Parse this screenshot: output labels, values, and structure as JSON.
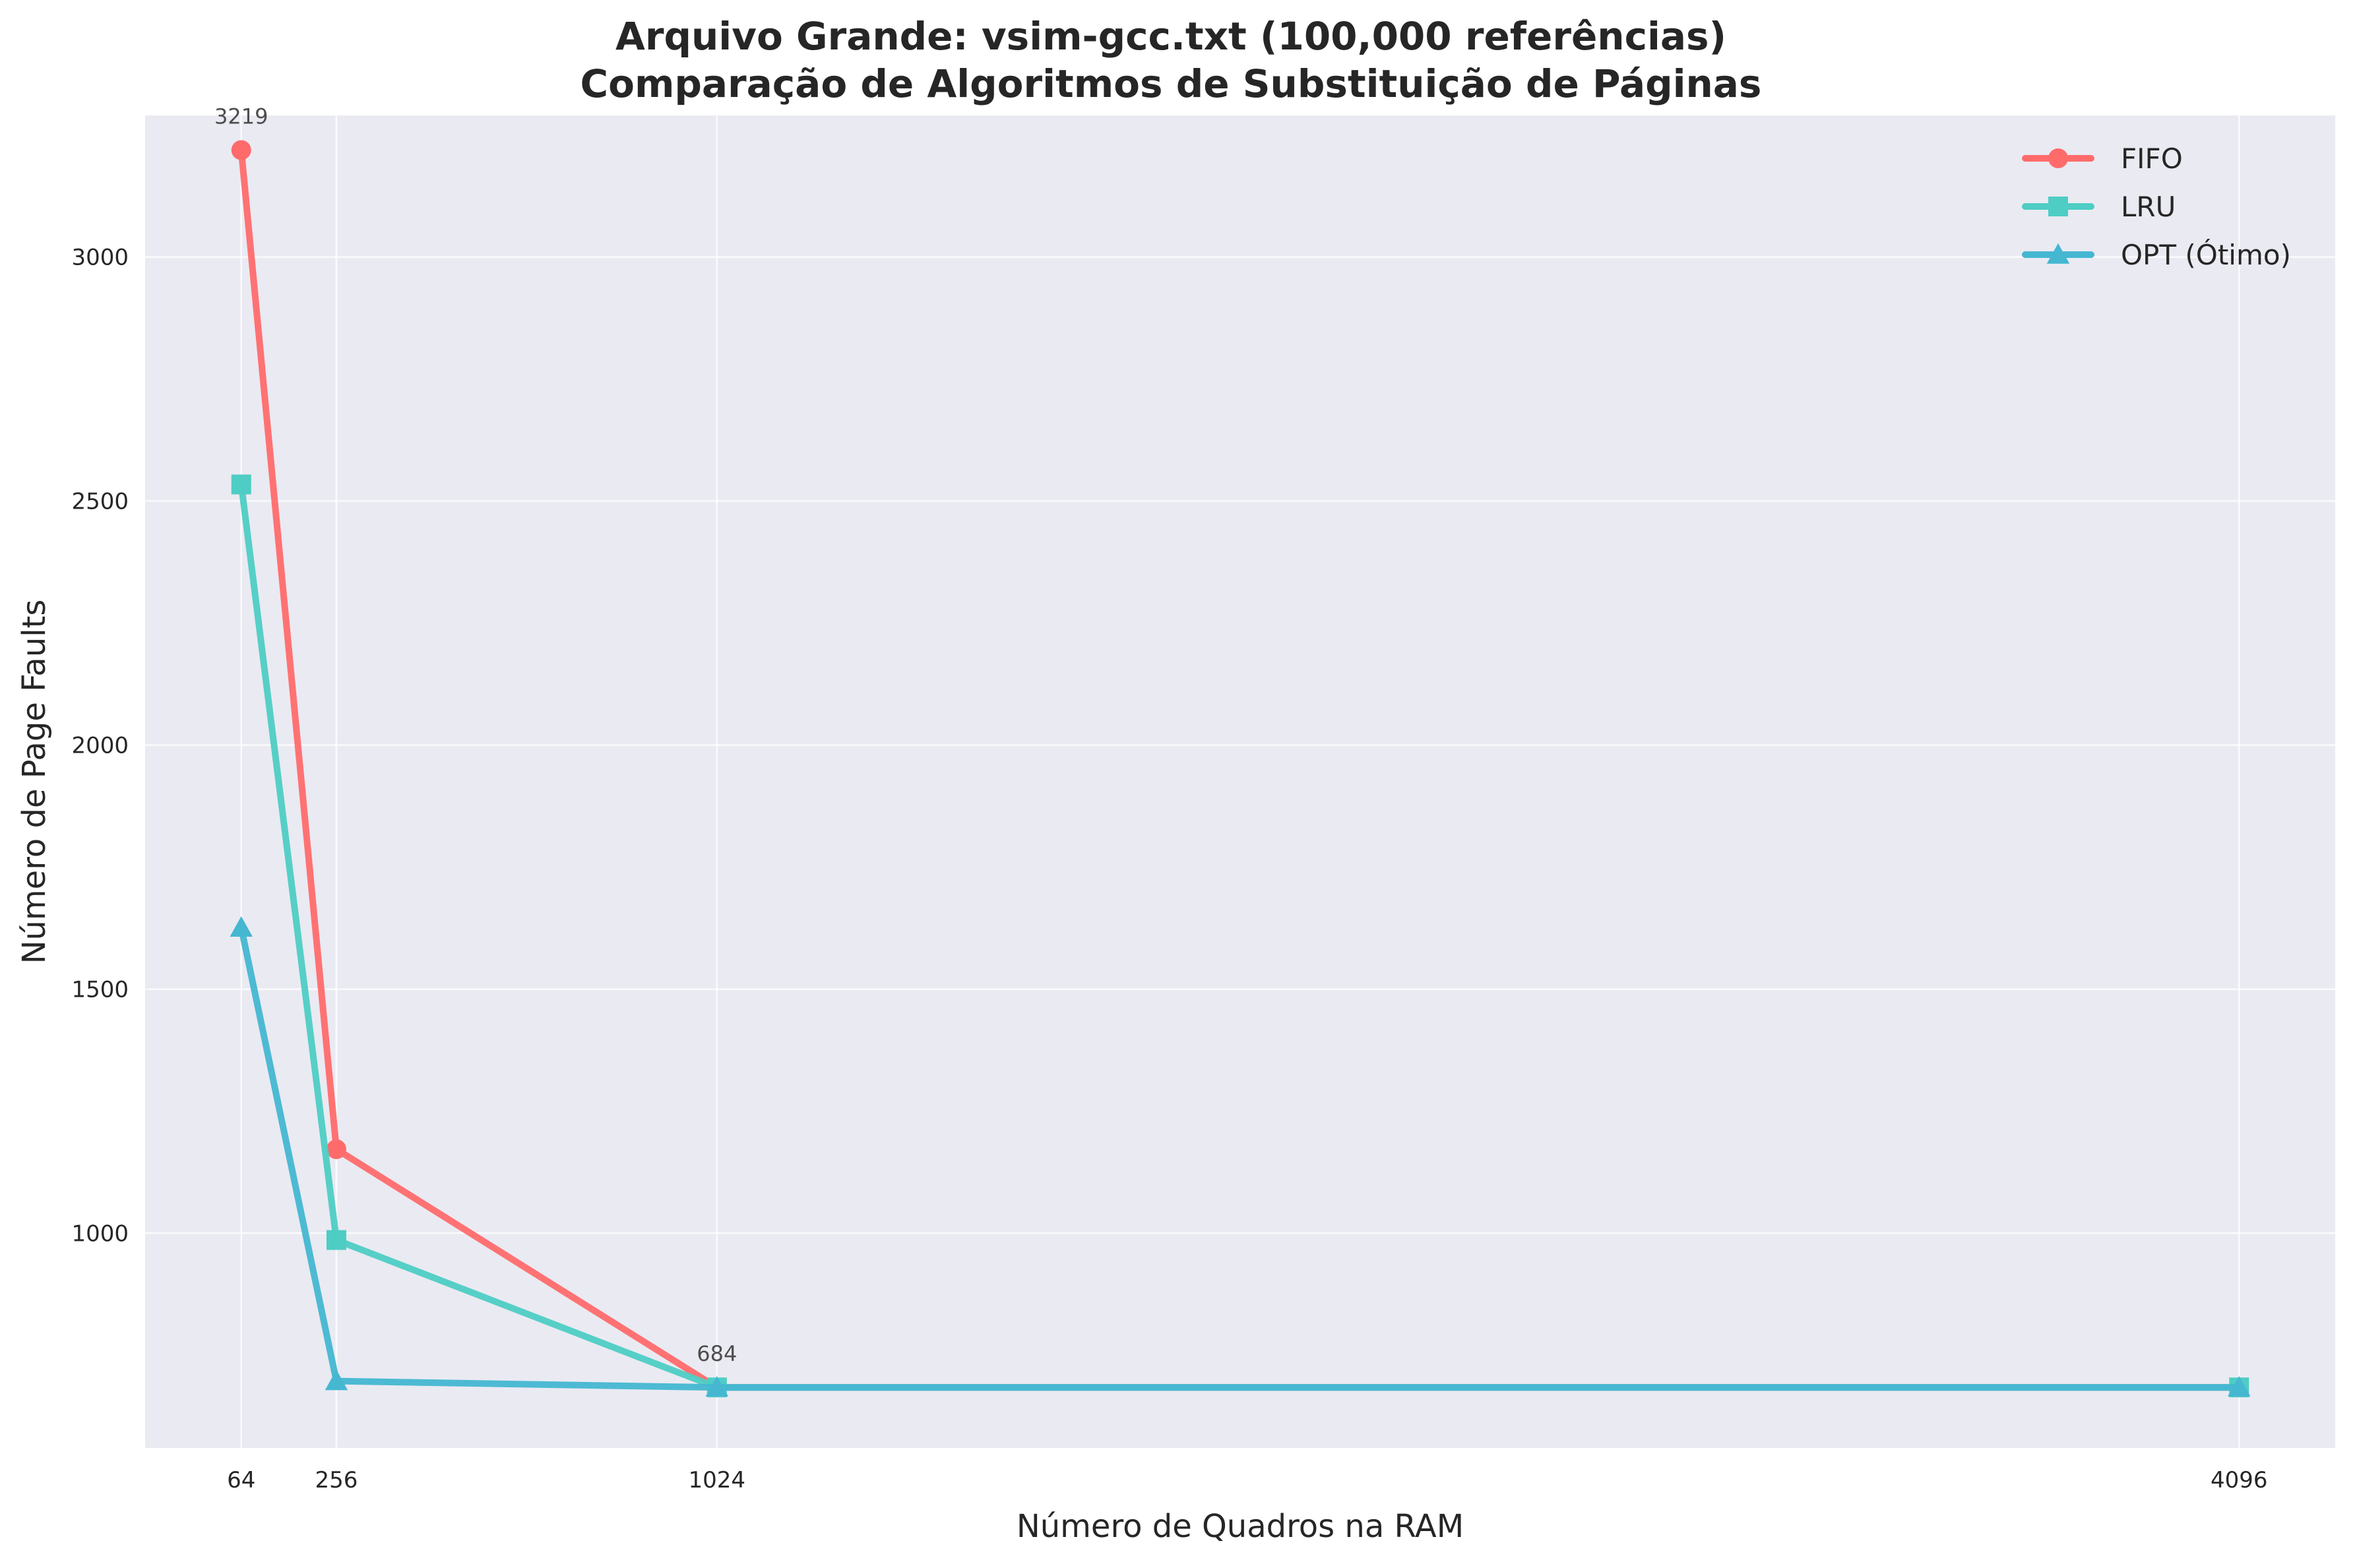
{
  "chart_data": {
    "type": "line",
    "title_lines": [
      "Arquivo Grande: vsim-gcc.txt (100,000 referências)",
      "Comparação de Algoritmos de Substituição de Páginas"
    ],
    "xlabel": "Número de Quadros na RAM",
    "ylabel": "Número de Page Faults",
    "x": [
      64,
      256,
      1024,
      4096
    ],
    "x_tick_labels": [
      "64",
      "256",
      "1024",
      "4096"
    ],
    "xlim": [
      -130,
      4290
    ],
    "ylim": [
      560,
      3290
    ],
    "y_ticks": [
      1000,
      1500,
      2000,
      2500,
      3000
    ],
    "y_tick_labels": [
      "1000",
      "1500",
      "2000",
      "2500",
      "3000"
    ],
    "grid": true,
    "background": "#eaeaf2",
    "legend_position": "top-right",
    "series": [
      {
        "name": "FIFO",
        "values": [
          3219,
          1172,
          684,
          684
        ],
        "color": "#ff6b6b",
        "marker": "circle"
      },
      {
        "name": "LRU",
        "values": [
          2534,
          986,
          684,
          684
        ],
        "color": "#4ecdc4",
        "marker": "square"
      },
      {
        "name": "OPT (Ótimo)",
        "values": [
          1626,
          697,
          684,
          684
        ],
        "color": "#45b7d1",
        "marker": "triangle"
      }
    ],
    "annotations": [
      {
        "text": "3219",
        "x": 64,
        "y": 3219
      },
      {
        "text": "684",
        "x": 1024,
        "y": 684
      }
    ]
  }
}
